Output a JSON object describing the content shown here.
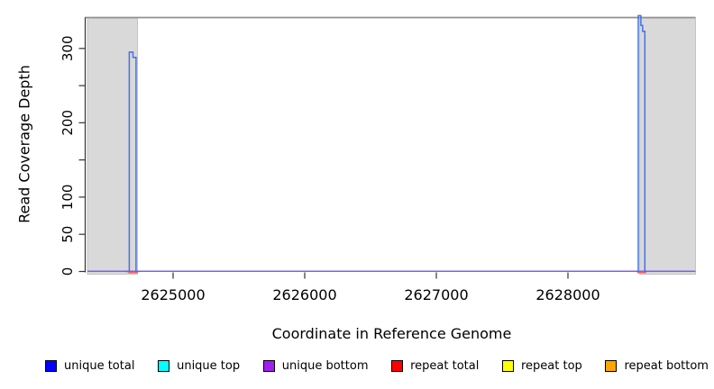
{
  "chart_data": {
    "type": "line",
    "title": "",
    "xlabel": "Coordinate in Reference Genome",
    "ylabel": "Read Coverage Depth",
    "xlim": [
      2624349,
      2628969
    ],
    "ylim": [
      0,
      341.5
    ],
    "grid": false,
    "x_ticks": [
      {
        "v": 2625000,
        "label": "2625000"
      },
      {
        "v": 2626000,
        "label": "2626000"
      },
      {
        "v": 2627000,
        "label": "2627000"
      },
      {
        "v": 2628000,
        "label": "2628000"
      }
    ],
    "y_ticks": [
      {
        "v": 0,
        "label": "0"
      },
      {
        "v": 50,
        "label": "50"
      },
      {
        "v": 100,
        "label": "100"
      },
      {
        "v": 150,
        "label": ""
      },
      {
        "v": 200,
        "label": "200"
      },
      {
        "v": 250,
        "label": ""
      },
      {
        "v": 300,
        "label": "300"
      }
    ],
    "masked_regions": {
      "color": "#D9D9D9",
      "border": "#C4C4C4",
      "ranges": [
        [
          2624349,
          2624729
        ],
        [
          2628545,
          2628969
        ]
      ]
    },
    "top_border_color": "#909090",
    "axis_color": "#333333",
    "series": [
      {
        "name": "repeat total",
        "color": "#FF5C5C",
        "segments": [
          [
            [
              2624660,
              0
            ],
            [
              2624730,
              0
            ]
          ],
          [
            [
              2628528,
              0
            ],
            [
              2628592,
              0
            ]
          ]
        ]
      },
      {
        "name": "unique bottom",
        "color": "#7C5FF2",
        "segments": [
          [
            [
              2624349,
              0
            ],
            [
              2628969,
              0
            ]
          ]
        ]
      },
      {
        "name": "unique total",
        "color": "#4472E4",
        "segments": [
          [
            [
              2624640,
              0
            ],
            [
              2624667,
              0
            ],
            [
              2624667,
              295
            ],
            [
              2624695,
              295
            ],
            [
              2624695,
              288
            ],
            [
              2624718,
              288
            ],
            [
              2624718,
              0
            ],
            [
              2624745,
              0
            ]
          ],
          [
            [
              2628520,
              0
            ],
            [
              2628534,
              0
            ],
            [
              2628534,
              344
            ],
            [
              2628554,
              344
            ],
            [
              2628554,
              331
            ],
            [
              2628567,
              331
            ],
            [
              2628567,
              323
            ],
            [
              2628584,
              323
            ],
            [
              2628584,
              0
            ],
            [
              2628600,
              0
            ]
          ]
        ]
      }
    ]
  },
  "legend": {
    "items": [
      {
        "label": "unique total",
        "color": "#0000FF"
      },
      {
        "label": "unique top",
        "color": "#00FFFF"
      },
      {
        "label": "unique bottom",
        "color": "#A020F0"
      },
      {
        "label": "repeat total",
        "color": "#FF0000"
      },
      {
        "label": "repeat top",
        "color": "#FFFF00"
      },
      {
        "label": "repeat bottom",
        "color": "#FFA500"
      }
    ]
  }
}
